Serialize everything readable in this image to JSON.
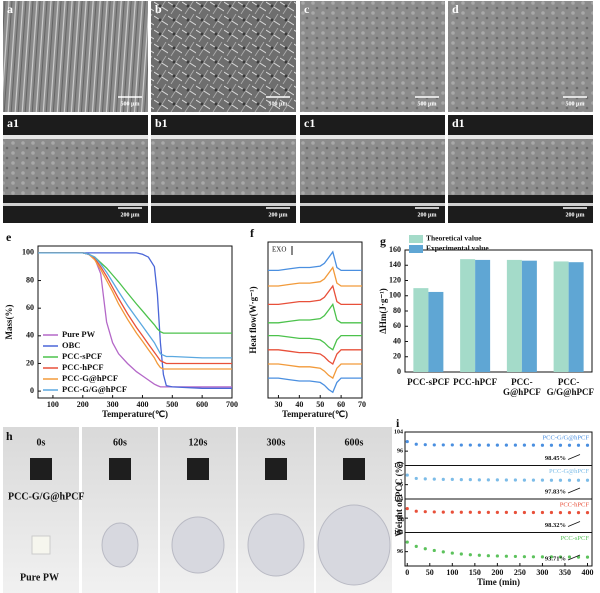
{
  "sem_images": [
    {
      "label": "a",
      "scale_bar": "500 μm"
    },
    {
      "label": "b",
      "scale_bar": "500 μm"
    },
    {
      "label": "c",
      "scale_bar": "500 μm"
    },
    {
      "label": "d",
      "scale_bar": "500 μm"
    },
    {
      "label": "a1",
      "scale_bar": "200 μm"
    },
    {
      "label": "b1",
      "scale_bar": "200 μm"
    },
    {
      "label": "c1",
      "scale_bar": "200 μm"
    },
    {
      "label": "d1",
      "scale_bar": "200 μm"
    }
  ],
  "photo_panel": {
    "label": "h",
    "times": [
      "0s",
      "60s",
      "120s",
      "300s",
      "600s"
    ],
    "samples": [
      "PCC-G/G@hPCF",
      "Pure PW"
    ]
  },
  "chart_data": [
    {
      "type": "line",
      "panel_label": "e",
      "xlabel": "Temperature(℃)",
      "ylabel": "Mass(%)",
      "x": [
        50,
        100,
        150,
        200,
        220,
        240,
        260,
        280,
        300,
        320,
        350,
        380,
        400,
        420,
        440,
        450,
        460,
        470,
        480,
        500,
        600,
        700
      ],
      "xlim": [
        50,
        700
      ],
      "xticks": [
        100,
        200,
        300,
        400,
        500,
        600,
        700
      ],
      "ylim": [
        -5,
        105
      ],
      "yticks": [
        0,
        20,
        40,
        60,
        80,
        100
      ],
      "legend": "lower left",
      "series": [
        {
          "name": "Pure PW",
          "color": "#b468c8",
          "values": [
            100,
            100,
            100,
            100,
            99,
            96,
            85,
            50,
            35,
            27,
            20,
            14,
            11,
            8,
            5,
            4,
            3,
            3,
            3,
            3,
            3,
            3
          ]
        },
        {
          "name": "OBC",
          "color": "#4a66d8",
          "values": [
            100,
            100,
            100,
            100,
            100,
            100,
            100,
            100,
            100,
            100,
            100,
            100,
            99,
            97,
            90,
            70,
            35,
            12,
            4,
            3,
            2,
            2
          ]
        },
        {
          "name": "PCC-sPCF",
          "color": "#4cc24c",
          "values": [
            100,
            100,
            100,
            100,
            99,
            97,
            93,
            89,
            84,
            79,
            71,
            63,
            58,
            53,
            48,
            45,
            43,
            42,
            42,
            42,
            42,
            42
          ]
        },
        {
          "name": "PCC-hPCF",
          "color": "#e8503a",
          "values": [
            100,
            100,
            100,
            100,
            99,
            96,
            90,
            83,
            75,
            67,
            56,
            46,
            40,
            34,
            28,
            25,
            22,
            21,
            20,
            20,
            20,
            20
          ]
        },
        {
          "name": "PCC-G@hPCF",
          "color": "#f29a3a",
          "values": [
            100,
            100,
            100,
            100,
            99,
            95,
            88,
            80,
            72,
            63,
            52,
            42,
            36,
            30,
            24,
            20,
            17,
            16,
            16,
            16,
            16,
            16
          ]
        },
        {
          "name": "PCC-G/G@hPCF",
          "color": "#5aa8e0",
          "values": [
            100,
            100,
            100,
            100,
            99,
            97,
            92,
            86,
            79,
            72,
            62,
            53,
            47,
            41,
            35,
            31,
            27,
            26,
            25,
            25,
            24,
            24
          ]
        }
      ]
    },
    {
      "type": "line",
      "panel_label": "f",
      "xlabel": "Temperature(℃)",
      "ylabel": "Heat flow(W·g⁻¹)",
      "annotation": "EXO",
      "x": [
        25,
        30,
        35,
        40,
        45,
        50,
        52,
        54,
        56,
        58,
        60,
        65,
        70
      ],
      "xlim": [
        25,
        70
      ],
      "xticks": [
        30,
        40,
        50,
        60,
        70
      ],
      "ylim": [
        0,
        11
      ],
      "series": [
        {
          "color": "#4a8fe0",
          "values": [
            9,
            9,
            9.1,
            9.2,
            9.2,
            9.3,
            9.5,
            9.9,
            10.3,
            9.2,
            9,
            9,
            9
          ]
        },
        {
          "color": "#f29a3a",
          "values": [
            7.9,
            7.9,
            8.0,
            8.1,
            8.1,
            8.2,
            8.4,
            8.8,
            9.2,
            8.1,
            7.9,
            7.9,
            7.9
          ]
        },
        {
          "color": "#e8503a",
          "values": [
            6.6,
            6.6,
            6.7,
            6.8,
            6.8,
            6.9,
            7.1,
            7.5,
            7.9,
            6.8,
            6.6,
            6.6,
            6.6
          ]
        },
        {
          "color": "#4cc24c",
          "values": [
            5.3,
            5.3,
            5.4,
            5.5,
            5.5,
            5.6,
            5.8,
            6.2,
            6.6,
            5.5,
            5.3,
            5.3,
            5.3
          ]
        },
        {
          "color": "#4cc24c",
          "values": [
            4.4,
            4.4,
            4.3,
            4.2,
            4.2,
            4.1,
            3.9,
            3.6,
            3.4,
            4.1,
            4.4,
            4.4,
            4.4
          ]
        },
        {
          "color": "#e8503a",
          "values": [
            3.4,
            3.4,
            3.3,
            3.2,
            3.2,
            3.1,
            2.9,
            2.6,
            2.4,
            3.1,
            3.4,
            3.4,
            3.4
          ]
        },
        {
          "color": "#f29a3a",
          "values": [
            2.4,
            2.4,
            2.3,
            2.2,
            2.2,
            2.1,
            1.9,
            1.6,
            1.4,
            2.1,
            2.4,
            2.4,
            2.4
          ]
        },
        {
          "color": "#4a8fe0",
          "values": [
            1.4,
            1.4,
            1.3,
            1.2,
            1.2,
            1.1,
            0.9,
            0.6,
            0.4,
            1.1,
            1.4,
            1.4,
            1.4
          ]
        }
      ]
    },
    {
      "type": "bar",
      "panel_label": "g",
      "ylabel": "ΔHm(J·g⁻¹)",
      "categories": [
        "PCC-sPCF",
        "PCC-hPCF",
        "PCC-G@hPCF",
        "PCC-G/G@hPCF"
      ],
      "ylim": [
        0,
        160
      ],
      "yticks": [
        0,
        20,
        40,
        60,
        80,
        100,
        120,
        140,
        160
      ],
      "legend": "upper left",
      "series": [
        {
          "name": "Theoretical value",
          "color": "#a4dbc9",
          "values": [
            110,
            148,
            147,
            145
          ]
        },
        {
          "name": "Experimental value",
          "color": "#5fa6d4",
          "values": [
            105,
            147,
            146,
            144
          ]
        }
      ]
    },
    {
      "type": "strips",
      "panel_label": "i",
      "xlabel": "Time (min)",
      "ylabel": "Weight of PCC (%)",
      "x": [
        0,
        20,
        40,
        60,
        80,
        100,
        120,
        140,
        160,
        180,
        200,
        220,
        240,
        260,
        280,
        300,
        320,
        340,
        360,
        380,
        400
      ],
      "xlim": [
        -5,
        410
      ],
      "xticks": [
        0,
        50,
        100,
        150,
        200,
        250,
        300,
        350,
        400
      ],
      "series": [
        {
          "name": "PCC-G/G@hPCF",
          "color": "#4a8fe0",
          "ylim": [
            90,
            104
          ],
          "yticks": [
            96,
            104
          ],
          "annotation": "98.45%",
          "values": [
            100,
            98.9,
            98.7,
            98.6,
            98.6,
            98.6,
            98.55,
            98.55,
            98.5,
            98.5,
            98.5,
            98.5,
            98.5,
            98.5,
            98.5,
            98.45,
            98.45,
            98.45,
            98.45,
            98.45,
            98.45
          ]
        },
        {
          "name": "PCC-G@hPCF",
          "color": "#7cbce8",
          "ylim": [
            90,
            104
          ],
          "yticks": [
            96,
            104
          ],
          "annotation": "97.83%",
          "values": [
            100,
            98.6,
            98.4,
            98.3,
            98.2,
            98.2,
            98.1,
            98.1,
            98.0,
            98.0,
            98.0,
            97.95,
            97.95,
            97.9,
            97.9,
            97.9,
            97.85,
            97.85,
            97.85,
            97.83,
            97.83
          ]
        },
        {
          "name": "PCC-hPCF",
          "color": "#e8503a",
          "ylim": [
            90,
            104
          ],
          "yticks": [
            96,
            104
          ],
          "annotation": "98.32%",
          "values": [
            100,
            98.9,
            98.7,
            98.6,
            98.5,
            98.5,
            98.45,
            98.45,
            98.4,
            98.4,
            98.4,
            98.4,
            98.35,
            98.35,
            98.35,
            98.35,
            98.35,
            98.32,
            98.32,
            98.32,
            98.32
          ]
        },
        {
          "name": "PCC-sPCF",
          "color": "#5cc25c",
          "ylim": [
            90,
            104
          ],
          "yticks": [
            96,
            104
          ],
          "annotation": "93.71%",
          "values": [
            100,
            98.2,
            97.2,
            96.5,
            95.9,
            95.4,
            95.0,
            94.7,
            94.5,
            94.3,
            94.2,
            94.1,
            94.0,
            93.9,
            93.85,
            93.8,
            93.8,
            93.75,
            93.75,
            93.71,
            93.71
          ]
        }
      ]
    }
  ]
}
